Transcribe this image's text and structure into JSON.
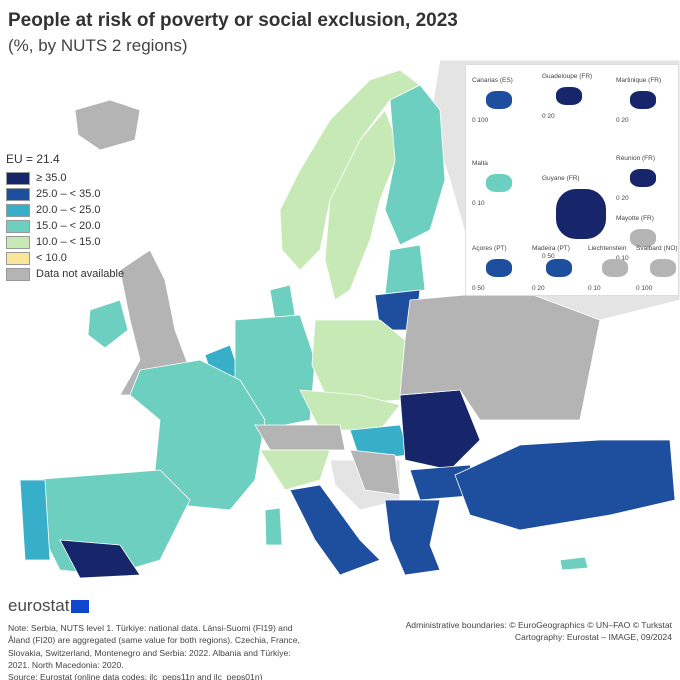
{
  "title": "People at risk of poverty or social exclusion, 2023",
  "subtitle": "(%, by NUTS 2 regions)",
  "legend": {
    "eu_label": "EU = 21.4",
    "classes": [
      {
        "label": "≥ 35.0",
        "color": "#17266b"
      },
      {
        "label": "25.0 – < 35.0",
        "color": "#1d4f9e"
      },
      {
        "label": "20.0 – < 25.0",
        "color": "#38afc9"
      },
      {
        "label": "15.0 – < 20.0",
        "color": "#6dcfbf"
      },
      {
        "label": "10.0 – < 15.0",
        "color": "#c7e9b5"
      },
      {
        "label": "< 10.0",
        "color": "#fbe59b"
      },
      {
        "label": "Data not available",
        "color": "#b4b4b4"
      }
    ]
  },
  "colors": {
    "non_covered_land": "#e4e4e4",
    "sea": "#ffffff"
  },
  "insets": [
    {
      "name": "Canarias (ES)",
      "scale": "0   100"
    },
    {
      "name": "Guadeloupe (FR)",
      "scale": "0   20"
    },
    {
      "name": "Martinique (FR)",
      "scale": "0   20"
    },
    {
      "name": "Malta",
      "scale": "0   10"
    },
    {
      "name": "Guyane (FR)",
      "scale": "0 50"
    },
    {
      "name": "Réunion (FR)",
      "scale": "0   20"
    },
    {
      "name": "Mayotte (FR)",
      "scale": "0   10"
    },
    {
      "name": "Açores (PT)",
      "scale": "0   50"
    },
    {
      "name": "Madeira (PT)",
      "scale": "0  20"
    },
    {
      "name": "Liechtenstein",
      "scale": "0   10"
    },
    {
      "name": "Svalbard (NO)",
      "scale": "0 100"
    }
  ],
  "logo": "eurostat",
  "note": "Note: Serbia, NUTS level 1. Türkiye: national data. Länsi-Suomi (FI19) and Åland (FI20) are aggregated (same value for both regions). Czechia, France, Slovakia, Switzerland, Montenegro and Serbia: 2022. Albania and Türkiye: 2021. North Macedonia: 2020.",
  "source": "Source: Eurostat (online data codes: ilc_peps11n and ilc_peps01n)",
  "credits": {
    "boundaries": "Administrative boundaries: © EuroGeographics © UN–FAO © Turkstat",
    "cartography": "Cartography: Eurostat – IMAGE, 09/2024"
  }
}
